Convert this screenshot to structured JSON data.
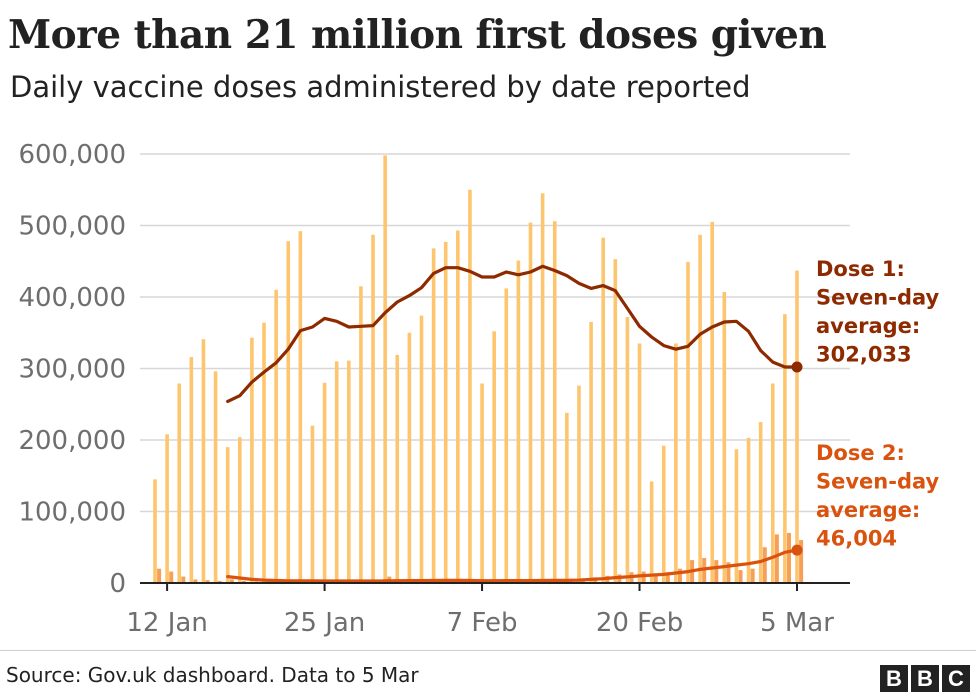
{
  "title": "More than 21 million first doses given",
  "subtitle": "Daily vaccine doses administered by date reported",
  "source": "Source: Gov.uk dashboard. Data to 5 Mar",
  "logo": [
    "B",
    "B",
    "C"
  ],
  "colors": {
    "dose1_bar": "#fdc56e",
    "dose2_bar": "#f6a057",
    "dose1_line": "#8e2a00",
    "dose2_line": "#d9530f",
    "grid": "#d7d7d7",
    "axis": "#222222"
  },
  "chart_data": {
    "type": "bar",
    "ylim": [
      0,
      600000
    ],
    "y_ticks": [
      {
        "value": 0,
        "label": "0"
      },
      {
        "value": 100000,
        "label": "100,000"
      },
      {
        "value": 200000,
        "label": "200,000"
      },
      {
        "value": 300000,
        "label": "300,000"
      },
      {
        "value": 400000,
        "label": "400,000"
      },
      {
        "value": 500000,
        "label": "500,000"
      },
      {
        "value": 600000,
        "label": "600,000"
      }
    ],
    "x_ticks": [
      {
        "date": "2021-01-12",
        "label": "12 Jan"
      },
      {
        "date": "2021-01-25",
        "label": "25 Jan"
      },
      {
        "date": "2021-02-07",
        "label": "7 Feb"
      },
      {
        "date": "2021-02-20",
        "label": "20 Feb"
      },
      {
        "date": "2021-03-05",
        "label": "5 Mar"
      }
    ],
    "x": [
      "2021-01-11",
      "2021-01-12",
      "2021-01-13",
      "2021-01-14",
      "2021-01-15",
      "2021-01-16",
      "2021-01-17",
      "2021-01-18",
      "2021-01-19",
      "2021-01-20",
      "2021-01-21",
      "2021-01-22",
      "2021-01-23",
      "2021-01-24",
      "2021-01-25",
      "2021-01-26",
      "2021-01-27",
      "2021-01-28",
      "2021-01-29",
      "2021-01-30",
      "2021-01-31",
      "2021-02-01",
      "2021-02-02",
      "2021-02-03",
      "2021-02-04",
      "2021-02-05",
      "2021-02-06",
      "2021-02-07",
      "2021-02-08",
      "2021-02-09",
      "2021-02-10",
      "2021-02-11",
      "2021-02-12",
      "2021-02-13",
      "2021-02-14",
      "2021-02-15",
      "2021-02-16",
      "2021-02-17",
      "2021-02-18",
      "2021-02-19",
      "2021-02-20",
      "2021-02-21",
      "2021-02-22",
      "2021-02-23",
      "2021-02-24",
      "2021-02-25",
      "2021-02-26",
      "2021-02-27",
      "2021-02-28",
      "2021-03-01",
      "2021-03-02",
      "2021-03-03",
      "2021-03-04",
      "2021-03-05"
    ],
    "series": [
      {
        "name": "Dose 1",
        "kind": "bar",
        "values": [
          145000,
          208000,
          279000,
          316000,
          341000,
          296000,
          190000,
          204000,
          343000,
          364000,
          410000,
          478000,
          492000,
          220000,
          280000,
          310000,
          311000,
          415000,
          487000,
          598000,
          319000,
          350000,
          374000,
          468000,
          477000,
          493000,
          550000,
          279000,
          352000,
          412000,
          451000,
          504000,
          545000,
          506000,
          238000,
          276000,
          365000,
          483000,
          453000,
          372000,
          335000,
          142000,
          192000,
          335000,
          449000,
          487000,
          505000,
          407000,
          187000,
          203000,
          225000,
          279000,
          376000,
          437000
        ]
      },
      {
        "name": "Dose 2",
        "kind": "bar",
        "values": [
          20000,
          16000,
          9000,
          5000,
          4000,
          3000,
          5000,
          3000,
          2000,
          2000,
          2000,
          2000,
          2000,
          1500,
          1500,
          1500,
          1500,
          2000,
          2500,
          9000,
          2500,
          2500,
          2500,
          3000,
          3000,
          3000,
          3000,
          2500,
          2500,
          3000,
          3000,
          3000,
          3500,
          4000,
          3000,
          4000,
          8000,
          10000,
          12000,
          15000,
          16000,
          12000,
          15000,
          20000,
          32000,
          35000,
          32000,
          29000,
          18000,
          20000,
          50000,
          68000,
          70000,
          60000
        ]
      },
      {
        "name": "Dose 1: Seven-day average",
        "kind": "line",
        "values": [
          null,
          null,
          null,
          null,
          null,
          null,
          254000,
          262000,
          281000,
          295000,
          308000,
          327000,
          353000,
          358000,
          370000,
          366000,
          358000,
          359000,
          360000,
          378000,
          393000,
          402000,
          413000,
          433000,
          441000,
          441000,
          436000,
          428000,
          428000,
          435000,
          431000,
          435000,
          443000,
          437000,
          430000,
          419000,
          412000,
          416000,
          409000,
          384000,
          359000,
          344000,
          332000,
          327000,
          331000,
          348000,
          358000,
          365000,
          366000,
          352000,
          325000,
          309000,
          302033,
          302033
        ]
      },
      {
        "name": "Dose 2: Seven-day average",
        "kind": "line",
        "values": [
          null,
          null,
          null,
          null,
          null,
          null,
          9000,
          7000,
          5000,
          4000,
          3500,
          3000,
          3000,
          3000,
          2800,
          2800,
          2800,
          2800,
          2800,
          3000,
          3200,
          3300,
          3400,
          3500,
          3600,
          3800,
          3500,
          3200,
          3200,
          3300,
          3300,
          3400,
          3500,
          3600,
          3700,
          4000,
          5000,
          6000,
          7500,
          8500,
          10000,
          11000,
          12000,
          14000,
          16000,
          19000,
          21000,
          23000,
          25000,
          27000,
          30000,
          36000,
          43000,
          46004
        ]
      }
    ],
    "annotations": [
      {
        "series": "Dose 1",
        "lines": [
          "Dose 1:",
          "Seven-day",
          "average:",
          "302,033"
        ],
        "value": 302033
      },
      {
        "series": "Dose 2",
        "lines": [
          "Dose 2:",
          "Seven-day",
          "average:",
          "46,004"
        ],
        "value": 46004
      }
    ],
    "grid": true,
    "legend": "none"
  }
}
